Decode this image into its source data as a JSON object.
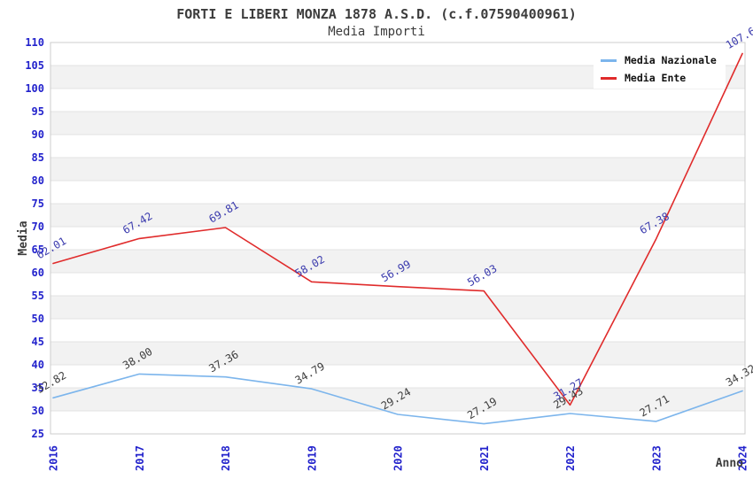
{
  "header": {
    "title": "FORTI E LIBERI MONZA 1878 A.S.D. (c.f.07590400961)",
    "subtitle": "Media Importi"
  },
  "legend": {
    "items": [
      {
        "label": "Media Nazionale",
        "color": "#7cb5ec"
      },
      {
        "label": "Media Ente",
        "color": "#e02b2b"
      }
    ]
  },
  "chart_data": {
    "type": "line",
    "title": "FORTI E LIBERI MONZA 1878 A.S.D. (c.f.07590400961)",
    "subtitle": "Media Importi",
    "xlabel": "Anno",
    "ylabel": "Media",
    "x": [
      2016,
      2017,
      2018,
      2019,
      2020,
      2021,
      2022,
      2023,
      2024
    ],
    "series": [
      {
        "name": "Media Nazionale",
        "color": "#7cb5ec",
        "label_color": "#3d3d3d",
        "values": [
          32.82,
          38.0,
          37.36,
          34.79,
          29.24,
          27.19,
          29.43,
          27.71,
          34.32
        ],
        "labels": [
          "32.82",
          "38.00",
          "37.36",
          "34.79",
          "29.24",
          "27.19",
          "29.43",
          "27.71",
          "34.32"
        ]
      },
      {
        "name": "Media Ente",
        "color": "#e02b2b",
        "label_color": "#3a3aad",
        "values": [
          62.01,
          67.42,
          69.81,
          58.02,
          56.99,
          56.03,
          31.27,
          67.38,
          107.6
        ],
        "labels": [
          "62.01",
          "67.42",
          "69.81",
          "58.02",
          "56.99",
          "56.03",
          "31.27",
          "67.38",
          "107.6"
        ]
      }
    ],
    "ylim": [
      25,
      110
    ],
    "ytick_step": 5,
    "grid": true,
    "band_colors": [
      "#ffffff",
      "#f2f2f2"
    ],
    "gridline_color": "#e3e3e3",
    "border_color": "#cccccc",
    "tick_label_color": "#2222cc",
    "axis_title_color": "#3c3c3c",
    "legend_position": "top-right"
  }
}
